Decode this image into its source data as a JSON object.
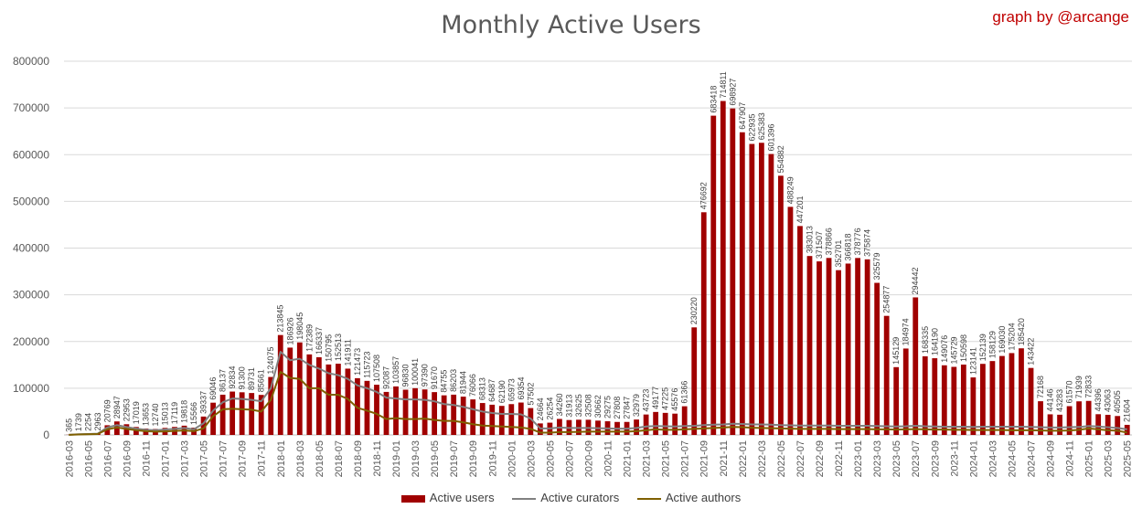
{
  "chart_data": {
    "type": "bar",
    "title": "Monthly Active Users",
    "credit": "graph by @arcange",
    "xlabel": "",
    "ylabel": "",
    "ylim": [
      0,
      800000
    ],
    "yticks": [
      0,
      100000,
      200000,
      300000,
      400000,
      500000,
      600000,
      700000,
      800000
    ],
    "grid": "horizontal",
    "legend_position": "bottom",
    "colors": {
      "users": "#a00000",
      "curators": "#808080",
      "authors": "#7f6000"
    },
    "categories": [
      "2016-03",
      "2016-04",
      "2016-05",
      "2016-06",
      "2016-07",
      "2016-08",
      "2016-09",
      "2016-10",
      "2016-11",
      "2016-12",
      "2017-01",
      "2017-02",
      "2017-03",
      "2017-04",
      "2017-05",
      "2017-06",
      "2017-07",
      "2017-08",
      "2017-09",
      "2017-10",
      "2017-11",
      "2017-12",
      "2018-01",
      "2018-02",
      "2018-03",
      "2018-04",
      "2018-05",
      "2018-06",
      "2018-07",
      "2018-08",
      "2018-09",
      "2018-10",
      "2018-11",
      "2018-12",
      "2019-01",
      "2019-02",
      "2019-03",
      "2019-04",
      "2019-05",
      "2019-06",
      "2019-07",
      "2019-08",
      "2019-09",
      "2019-10",
      "2019-11",
      "2019-12",
      "2020-01",
      "2020-02",
      "2020-03",
      "2020-04",
      "2020-05",
      "2020-06",
      "2020-07",
      "2020-08",
      "2020-09",
      "2020-10",
      "2020-11",
      "2020-12",
      "2021-01",
      "2021-02",
      "2021-03",
      "2021-04",
      "2021-05",
      "2021-06",
      "2021-07",
      "2021-08",
      "2021-09",
      "2021-10",
      "2021-11",
      "2021-12",
      "2022-01",
      "2022-02",
      "2022-03",
      "2022-04",
      "2022-05",
      "2022-06",
      "2022-07",
      "2022-08",
      "2022-09",
      "2022-10",
      "2022-11",
      "2022-12",
      "2023-01",
      "2023-02",
      "2023-03",
      "2023-04",
      "2023-05",
      "2023-06",
      "2023-07",
      "2023-08",
      "2023-09",
      "2023-10",
      "2023-11",
      "2023-12",
      "2024-01",
      "2024-02",
      "2024-03",
      "2024-04",
      "2024-05",
      "2024-06",
      "2024-07",
      "2024-08",
      "2024-09",
      "2024-10",
      "2024-11",
      "2024-12",
      "2025-01",
      "2025-02",
      "2025-03",
      "2025-04",
      "2025-05"
    ],
    "xtick_labels": [
      "2016-03",
      "2016-05",
      "2016-07",
      "2016-09",
      "2016-11",
      "2017-01",
      "2017-03",
      "2017-05",
      "2017-07",
      "2017-09",
      "2017-11",
      "2018-01",
      "2018-03",
      "2018-05",
      "2018-07",
      "2018-09",
      "2018-11",
      "2019-01",
      "2019-03",
      "2019-05",
      "2019-07",
      "2019-09",
      "2019-11",
      "2020-01",
      "2020-03",
      "2020-05",
      "2020-07",
      "2020-09",
      "2020-11",
      "2021-01",
      "2021-03",
      "2021-05",
      "2021-07",
      "2021-09",
      "2021-11",
      "2022-01",
      "2022-03",
      "2022-05",
      "2022-07",
      "2022-09",
      "2022-11",
      "2023-01",
      "2023-03",
      "2023-05",
      "2023-07",
      "2023-09",
      "2023-11",
      "2024-01",
      "2024-03",
      "2024-05",
      "2024-07",
      "2024-09",
      "2024-11",
      "2025-01",
      "2025-03",
      "2025-05"
    ],
    "series": [
      {
        "name": "Active users",
        "kind": "bar",
        "values": [
          365,
          1739,
          2254,
          2963,
          20769,
          28947,
          22953,
          17019,
          13653,
          12740,
          15013,
          17119,
          19818,
          15566,
          39337,
          69046,
          86137,
          92834,
          91300,
          89731,
          85661,
          124075,
          213845,
          186926,
          198045,
          172389,
          166337,
          150795,
          152513,
          141911,
          121473,
          115723,
          107508,
          92087,
          103857,
          96830,
          100041,
          97390,
          91670,
          84755,
          86203,
          81944,
          76066,
          68313,
          64687,
          62190,
          65973,
          69354,
          57502,
          24664,
          26254,
          34260,
          31913,
          32625,
          32508,
          30662,
          29275,
          27808,
          27847,
          32979,
          43723,
          49177,
          47225,
          45576,
          61366,
          230220,
          476692,
          683418,
          714811,
          698927,
          647907,
          622935,
          625383,
          601396,
          554882,
          488249,
          447201,
          383013,
          371507,
          378866,
          352701,
          366818,
          378776,
          375874,
          325579,
          254877,
          145129,
          184974,
          294442,
          168335,
          164190,
          149076,
          145729,
          150598,
          123141,
          152139,
          158129,
          169030,
          175204,
          185420,
          143422,
          72168,
          44146,
          43283,
          61570,
          71939,
          72833,
          44396,
          43063,
          40505,
          21604
        ]
      },
      {
        "name": "Active curators",
        "kind": "line",
        "values": [
          300,
          1500,
          2000,
          2700,
          16000,
          21000,
          17000,
          13500,
          11000,
          10000,
          11500,
          13000,
          15000,
          12000,
          25000,
          52000,
          70000,
          78000,
          77000,
          75000,
          72000,
          100000,
          178000,
          160000,
          163000,
          150000,
          142000,
          132000,
          128000,
          120000,
          106000,
          100000,
          92000,
          80000,
          78000,
          76000,
          76000,
          75000,
          72000,
          66000,
          64000,
          60000,
          55000,
          50000,
          47000,
          45000,
          45000,
          44000,
          35000,
          14000,
          14000,
          16000,
          15000,
          15000,
          15000,
          14500,
          14000,
          13500,
          13500,
          15000,
          18000,
          19000,
          18500,
          18000,
          19000,
          19500,
          21000,
          22000,
          22500,
          24000,
          23500,
          22500,
          22500,
          22000,
          21000,
          20500,
          20000,
          20000,
          20000,
          20000,
          19500,
          19500,
          19500,
          19500,
          19000,
          18500,
          18000,
          18500,
          19500,
          18500,
          18000,
          17500,
          17500,
          17500,
          17000,
          17500,
          17500,
          17500,
          17500,
          17500,
          17000,
          16500,
          16000,
          16000,
          16500,
          17000,
          19000,
          18000,
          16500,
          15000,
          12000
        ]
      },
      {
        "name": "Active authors",
        "kind": "line",
        "values": [
          200,
          1000,
          1500,
          2000,
          12000,
          16000,
          13000,
          10000,
          8000,
          7000,
          7500,
          8500,
          9500,
          8000,
          14000,
          40000,
          55000,
          56000,
          55000,
          54000,
          50000,
          75000,
          135000,
          122000,
          120000,
          100000,
          100000,
          86000,
          86000,
          77000,
          58000,
          52000,
          45000,
          34000,
          36000,
          34000,
          34000,
          35000,
          32000,
          30000,
          30000,
          27000,
          23000,
          20000,
          19000,
          18000,
          17000,
          16000,
          13000,
          5000,
          5000,
          6000,
          6000,
          6500,
          7000,
          7000,
          7000,
          7000,
          7000,
          8000,
          10000,
          12000,
          11000,
          11000,
          12000,
          13000,
          14000,
          15000,
          16000,
          17000,
          16500,
          15500,
          15000,
          14500,
          14000,
          13500,
          13000,
          13000,
          13000,
          13000,
          12500,
          12500,
          12500,
          12500,
          12000,
          12000,
          11500,
          12000,
          12500,
          12000,
          11500,
          11500,
          11000,
          11000,
          10500,
          10500,
          10500,
          10500,
          10000,
          10000,
          10000,
          9500,
          9000,
          9000,
          9500,
          11000,
          14000,
          12000,
          10000,
          9000,
          5000
        ]
      }
    ]
  }
}
